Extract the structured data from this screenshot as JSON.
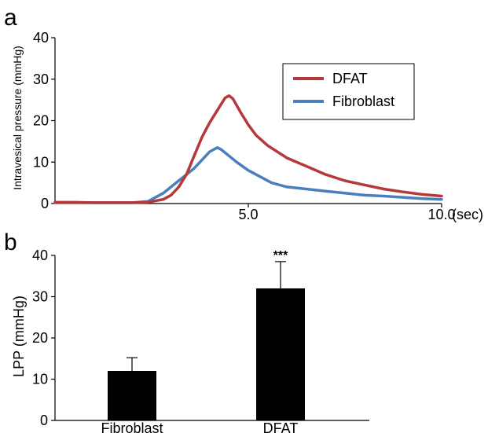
{
  "panel_a": {
    "letter": "a"
  },
  "panel_b": {
    "letter": "b"
  },
  "colors": {
    "dfat": "#b5393b",
    "fibroblast": "#4a7fbd",
    "bar": "#000000"
  },
  "chart_data": [
    {
      "type": "line",
      "ylabel": "Intravesical pressure (mmHg)",
      "xunit": "(sec)",
      "xlim": [
        0,
        10.0
      ],
      "ylim": [
        0,
        40
      ],
      "yticks": [
        0,
        10,
        20,
        30,
        40
      ],
      "xticks": [
        5.0,
        10.0
      ],
      "xtick_labels": [
        "5.0",
        "10.0"
      ],
      "legend_position": "top-right",
      "series": [
        {
          "name": "DFAT",
          "color": "#b5393b",
          "x": [
            0,
            0.5,
            1.0,
            1.5,
            2.0,
            2.4,
            2.8,
            3.0,
            3.2,
            3.4,
            3.6,
            3.8,
            4.0,
            4.2,
            4.4,
            4.5,
            4.6,
            4.8,
            5.0,
            5.2,
            5.5,
            6.0,
            6.5,
            7.0,
            7.5,
            8.0,
            8.5,
            9.0,
            9.5,
            10.0
          ],
          "values": [
            0.3,
            0.3,
            0.2,
            0.2,
            0.2,
            0.3,
            1.0,
            2.0,
            4.0,
            7.0,
            11.5,
            16.0,
            19.5,
            22.5,
            25.5,
            26.0,
            25.3,
            22.0,
            19.0,
            16.5,
            14.0,
            11.0,
            9.0,
            7.0,
            5.5,
            4.5,
            3.5,
            2.8,
            2.2,
            1.8
          ]
        },
        {
          "name": "Fibroblast",
          "color": "#4a7fbd",
          "x": [
            0,
            0.5,
            1.0,
            1.5,
            2.0,
            2.4,
            2.6,
            2.8,
            3.0,
            3.2,
            3.4,
            3.6,
            3.8,
            4.0,
            4.1,
            4.2,
            4.3,
            4.5,
            4.7,
            5.0,
            5.3,
            5.6,
            6.0,
            6.5,
            7.0,
            7.5,
            8.0,
            8.5,
            9.0,
            9.5,
            10.0
          ],
          "values": [
            0.2,
            0.2,
            0.2,
            0.2,
            0.2,
            0.5,
            1.5,
            2.5,
            4.0,
            5.5,
            7.0,
            8.5,
            10.5,
            12.5,
            13.0,
            13.5,
            13.0,
            11.5,
            10.0,
            8.0,
            6.5,
            5.0,
            4.0,
            3.5,
            3.0,
            2.5,
            2.0,
            1.8,
            1.5,
            1.2,
            1.0
          ]
        }
      ]
    },
    {
      "type": "bar",
      "ylabel": "LPP (mmHg)",
      "ylim": [
        0,
        40
      ],
      "yticks": [
        0,
        10,
        20,
        30,
        40
      ],
      "categories": [
        "Fibroblast",
        "DFAT"
      ],
      "values": [
        12,
        32
      ],
      "errors": [
        3.2,
        6.5
      ],
      "annotations": [
        "",
        "***"
      ]
    }
  ]
}
